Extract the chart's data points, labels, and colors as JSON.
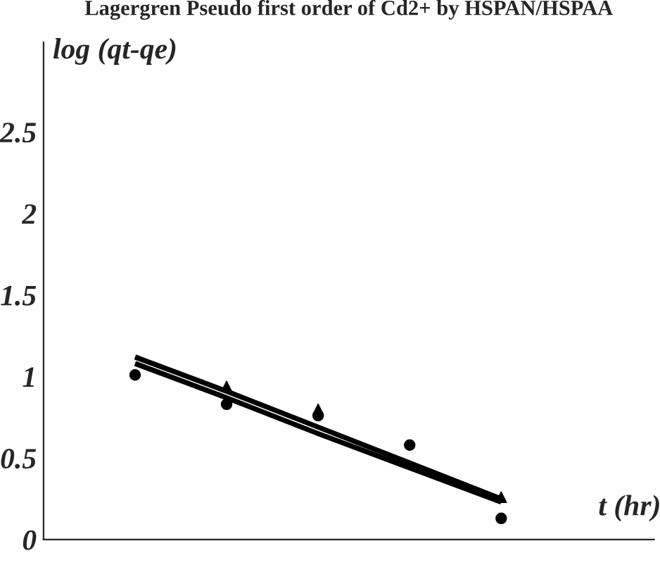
{
  "chart_data": {
    "type": "scatter",
    "title": "Lagergren Pseudo first order of Cd2+ by HSPAN/HSPAA",
    "xlabel": "t (hr)",
    "ylabel": "log (qt-qe)",
    "categories": [
      null,
      null,
      null,
      null,
      null
    ],
    "ylim": [
      0,
      3.05
    ],
    "yticks": [
      0,
      0.5,
      1,
      1.5,
      2,
      2.5
    ],
    "tick_labels": "y",
    "grid": false,
    "legend": false,
    "series": [
      {
        "marker": "circle",
        "color": "#000000",
        "values": [
          1.01,
          0.83,
          0.76,
          0.58,
          0.13
        ]
      },
      {
        "marker": "triangle",
        "color": "#000000",
        "values": [
          null,
          0.94,
          0.8,
          null,
          0.26
        ]
      },
      {
        "type": "line",
        "marker": "none",
        "line_style": "solid",
        "color": "#000000",
        "values": [
          1.12,
          0.91,
          0.69,
          0.47,
          0.25
        ]
      },
      {
        "type": "line",
        "marker": "none",
        "line_style": "solid",
        "color": "#000000",
        "values": [
          1.08,
          0.87,
          0.65,
          0.44,
          0.23
        ]
      }
    ]
  }
}
